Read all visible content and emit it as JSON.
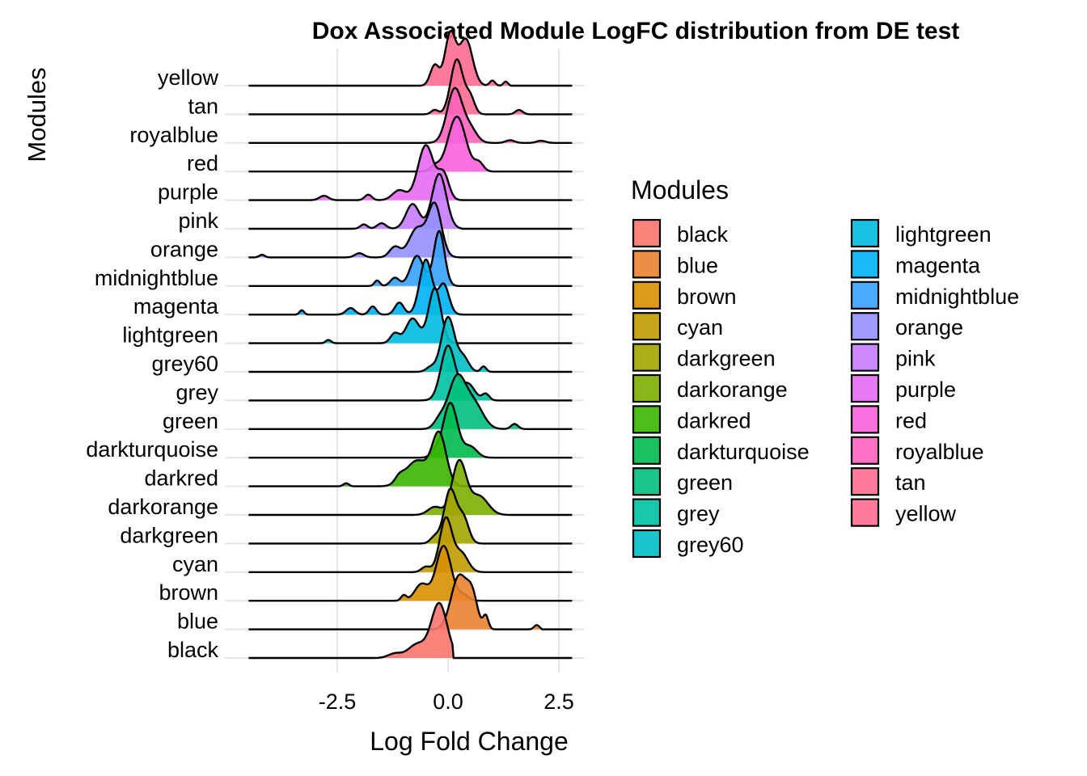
{
  "chart_data": {
    "type": "ridgeline",
    "title": "Dox Associated Module LogFC distribution from DE test",
    "xlabel": "Log Fold Change",
    "ylabel": "Modules",
    "xlim": [
      -4.5,
      3.0
    ],
    "x_ticks": [
      -2.5,
      0.0,
      2.5
    ],
    "x_tick_labels": [
      "-2.5",
      "0.0",
      "2.5"
    ],
    "grid": true,
    "legend": {
      "title": "Modules",
      "placement": "right",
      "columns": 2
    },
    "series": [
      {
        "name": "black",
        "color": "#F8766D",
        "peak": -0.2,
        "sd": 0.18,
        "min": -4.4,
        "max": 0.1,
        "bumps": [
          [
            -0.7,
            0.2,
            0.25
          ],
          [
            -1.2,
            0.15,
            0.08
          ]
        ]
      },
      {
        "name": "blue",
        "color": "#EA8331",
        "peak": 0.25,
        "sd": 0.18,
        "min": -4.4,
        "max": 2.1,
        "bumps": [
          [
            0.55,
            0.12,
            0.55
          ],
          [
            0.85,
            0.06,
            0.25
          ],
          [
            2.0,
            0.06,
            0.08
          ]
        ]
      },
      {
        "name": "brown",
        "color": "#D89000",
        "peak": -0.1,
        "sd": 0.17,
        "min": -4.4,
        "max": 0.9,
        "bumps": [
          [
            -0.6,
            0.15,
            0.3
          ],
          [
            -1.0,
            0.06,
            0.1
          ],
          [
            0.35,
            0.12,
            0.1
          ]
        ]
      },
      {
        "name": "cyan",
        "color": "#C09B00",
        "peak": -0.05,
        "sd": 0.14,
        "min": -4.4,
        "max": 1.0,
        "bumps": [
          [
            0.3,
            0.15,
            0.35
          ],
          [
            -0.5,
            0.1,
            0.1
          ]
        ]
      },
      {
        "name": "darkgreen",
        "color": "#A3A500",
        "peak": 0.05,
        "sd": 0.14,
        "min": -4.4,
        "max": 1.3,
        "bumps": [
          [
            0.35,
            0.12,
            0.45
          ],
          [
            -0.3,
            0.1,
            0.12
          ]
        ]
      },
      {
        "name": "darkorange",
        "color": "#7CAE00",
        "peak": 0.25,
        "sd": 0.16,
        "min": -4.4,
        "max": 1.5,
        "bumps": [
          [
            0.7,
            0.2,
            0.35
          ],
          [
            -0.3,
            0.15,
            0.15
          ]
        ]
      },
      {
        "name": "darkred",
        "color": "#39B600",
        "peak": -0.2,
        "sd": 0.16,
        "min": -4.4,
        "max": 0.5,
        "bumps": [
          [
            -0.7,
            0.25,
            0.5
          ],
          [
            -1.1,
            0.1,
            0.12
          ],
          [
            -2.3,
            0.06,
            0.06
          ]
        ]
      },
      {
        "name": "darkturquoise",
        "color": "#00BB4E",
        "peak": 0.05,
        "sd": 0.16,
        "min": -4.4,
        "max": 1.3,
        "bumps": [
          [
            0.5,
            0.15,
            0.2
          ],
          [
            -0.3,
            0.1,
            0.1
          ]
        ]
      },
      {
        "name": "green",
        "color": "#00BF7D",
        "peak": 0.2,
        "sd": 0.2,
        "min": -4.4,
        "max": 2.0,
        "bumps": [
          [
            0.6,
            0.2,
            0.45
          ],
          [
            1.5,
            0.08,
            0.1
          ],
          [
            -0.2,
            0.12,
            0.15
          ]
        ]
      },
      {
        "name": "grey",
        "color": "#00C1A3",
        "peak": 0.0,
        "sd": 0.16,
        "min": -4.4,
        "max": 1.3,
        "bumps": [
          [
            0.45,
            0.15,
            0.3
          ],
          [
            0.85,
            0.08,
            0.12
          ]
        ]
      },
      {
        "name": "grey60",
        "color": "#00BFC4",
        "peak": 0.0,
        "sd": 0.15,
        "min": -4.4,
        "max": 1.1,
        "bumps": [
          [
            0.35,
            0.12,
            0.25
          ],
          [
            0.8,
            0.06,
            0.1
          ],
          [
            -0.4,
            0.1,
            0.08
          ]
        ]
      },
      {
        "name": "lightgreen",
        "color": "#00BAE0",
        "peak": -0.3,
        "sd": 0.14,
        "min": -4.4,
        "max": 0.5,
        "bumps": [
          [
            -0.8,
            0.15,
            0.45
          ],
          [
            -1.2,
            0.1,
            0.18
          ],
          [
            -2.7,
            0.06,
            0.06
          ]
        ]
      },
      {
        "name": "magenta",
        "color": "#00B0F6",
        "peak": -0.5,
        "sd": 0.14,
        "min": -4.4,
        "max": 0.4,
        "bumps": [
          [
            -0.1,
            0.12,
            0.55
          ],
          [
            -1.1,
            0.1,
            0.22
          ],
          [
            -1.7,
            0.08,
            0.15
          ],
          [
            -2.2,
            0.1,
            0.12
          ],
          [
            -3.3,
            0.05,
            0.08
          ]
        ]
      },
      {
        "name": "midnightblue",
        "color": "#35A2FF",
        "peak": -0.2,
        "sd": 0.12,
        "min": -4.4,
        "max": 0.2,
        "bumps": [
          [
            -0.7,
            0.15,
            0.55
          ],
          [
            -1.2,
            0.1,
            0.15
          ],
          [
            -1.6,
            0.06,
            0.1
          ]
        ]
      },
      {
        "name": "orange",
        "color": "#9590FF",
        "peak": -0.3,
        "sd": 0.15,
        "min": -4.4,
        "max": 0.3,
        "bumps": [
          [
            -0.7,
            0.18,
            0.55
          ],
          [
            -1.2,
            0.12,
            0.2
          ],
          [
            -2.0,
            0.1,
            0.08
          ],
          [
            -4.2,
            0.06,
            0.05
          ]
        ]
      },
      {
        "name": "pink",
        "color": "#C77CFF",
        "peak": -0.2,
        "sd": 0.16,
        "min": -4.4,
        "max": 0.3,
        "bumps": [
          [
            -0.8,
            0.15,
            0.45
          ],
          [
            -1.5,
            0.1,
            0.1
          ],
          [
            -1.9,
            0.08,
            0.08
          ]
        ]
      },
      {
        "name": "purple",
        "color": "#E76BF3",
        "peak": -0.5,
        "sd": 0.18,
        "min": -4.4,
        "max": 0.3,
        "bumps": [
          [
            -0.1,
            0.12,
            0.45
          ],
          [
            -1.1,
            0.15,
            0.18
          ],
          [
            -1.8,
            0.08,
            0.1
          ],
          [
            -2.8,
            0.1,
            0.08
          ]
        ]
      },
      {
        "name": "red",
        "color": "#FA62DB",
        "peak": 0.2,
        "sd": 0.2,
        "min": -4.4,
        "max": 1.0,
        "bumps": [
          [
            0.7,
            0.1,
            0.15
          ],
          [
            -0.3,
            0.1,
            0.1
          ]
        ]
      },
      {
        "name": "royalblue",
        "color": "#FF62BC",
        "peak": 0.15,
        "sd": 0.17,
        "min": -4.4,
        "max": 2.5,
        "bumps": [
          [
            0.5,
            0.15,
            0.25
          ],
          [
            1.4,
            0.1,
            0.05
          ],
          [
            2.1,
            0.1,
            0.04
          ]
        ]
      },
      {
        "name": "tan",
        "color": "#FF6C91",
        "peak": 0.2,
        "sd": 0.14,
        "min": -4.4,
        "max": 2.0,
        "bumps": [
          [
            0.5,
            0.1,
            0.3
          ],
          [
            1.6,
            0.08,
            0.08
          ],
          [
            -0.3,
            0.08,
            0.08
          ]
        ]
      },
      {
        "name": "yellow",
        "color": "#FF6C91",
        "peak": 0.05,
        "sd": 0.12,
        "min": -4.4,
        "max": 1.4,
        "bumps": [
          [
            0.4,
            0.15,
            0.9
          ],
          [
            -0.3,
            0.1,
            0.4
          ],
          [
            1.0,
            0.06,
            0.1
          ],
          [
            1.3,
            0.05,
            0.08
          ]
        ]
      }
    ]
  }
}
